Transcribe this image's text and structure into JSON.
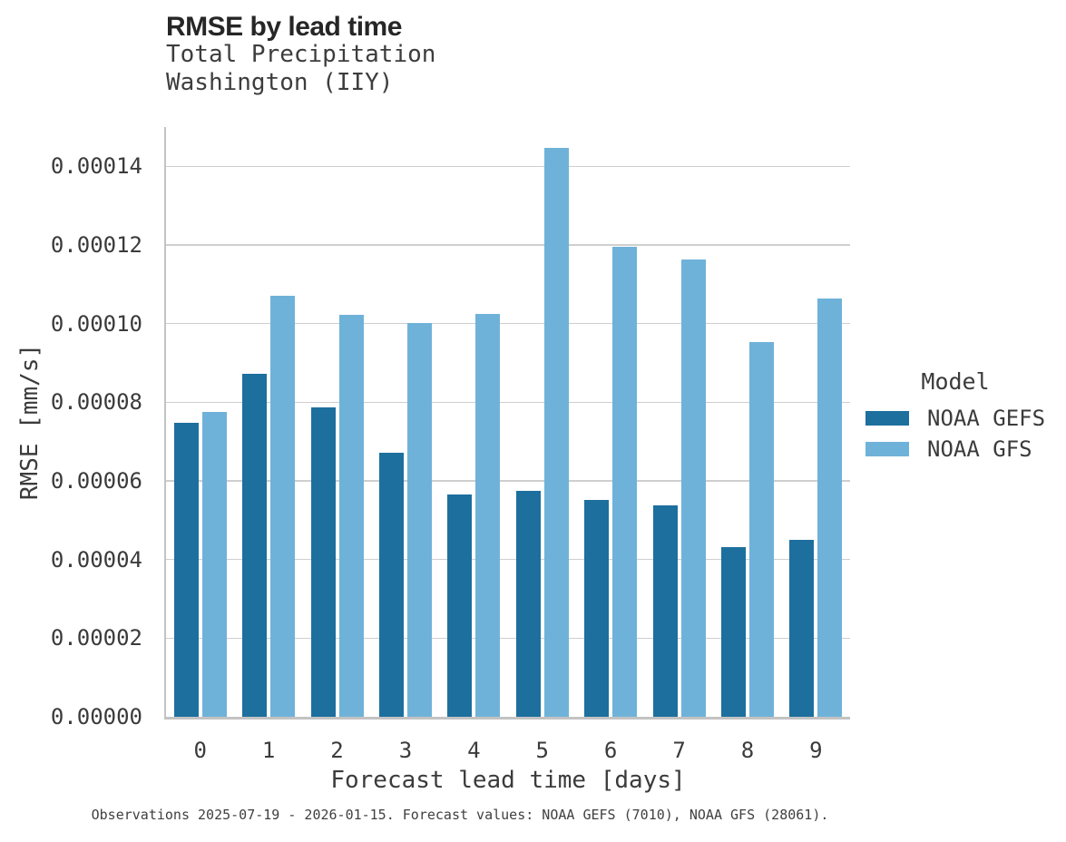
{
  "chart_data": {
    "type": "bar",
    "title": "RMSE by lead time",
    "subtitle": "Total Precipitation\nWashington (IIY)",
    "xlabel": "Forecast lead time [days]",
    "ylabel": "RMSE [mm/s]",
    "legend_title": "Model",
    "legend_position": "right",
    "grid": "horizontal",
    "background_color": "#ffffff",
    "gridline_color": "#cfcfcf",
    "spine_color": "#c3c3c3",
    "categories": [
      "0",
      "1",
      "2",
      "3",
      "4",
      "5",
      "6",
      "7",
      "8",
      "9"
    ],
    "series": [
      {
        "name": "NOAA GEFS",
        "color": "#1d6f9e",
        "values": [
          7.48e-05,
          8.73e-05,
          7.87e-05,
          6.72e-05,
          5.65e-05,
          5.75e-05,
          5.52e-05,
          5.38e-05,
          4.32e-05,
          4.5e-05
        ]
      },
      {
        "name": "NOAA GFS",
        "color": "#6fb2d9",
        "values": [
          7.75e-05,
          0.0001071,
          0.0001023,
          0.0001002,
          0.0001025,
          0.0001446,
          0.0001196,
          0.0001163,
          9.54e-05,
          0.0001064
        ]
      }
    ],
    "ylim": [
      0,
      0.00015
    ],
    "yticks": [
      0,
      2e-05,
      4e-05,
      6e-05,
      8e-05,
      0.0001,
      0.00012,
      0.00014
    ],
    "ytick_labels": [
      "0.00000",
      "0.00002",
      "0.00004",
      "0.00006",
      "0.00008",
      "0.00010",
      "0.00012",
      "0.00014"
    ],
    "caption": "Observations 2025-07-19 - 2026-01-15. Forecast values: NOAA GEFS (7010), NOAA GFS (28061)."
  }
}
